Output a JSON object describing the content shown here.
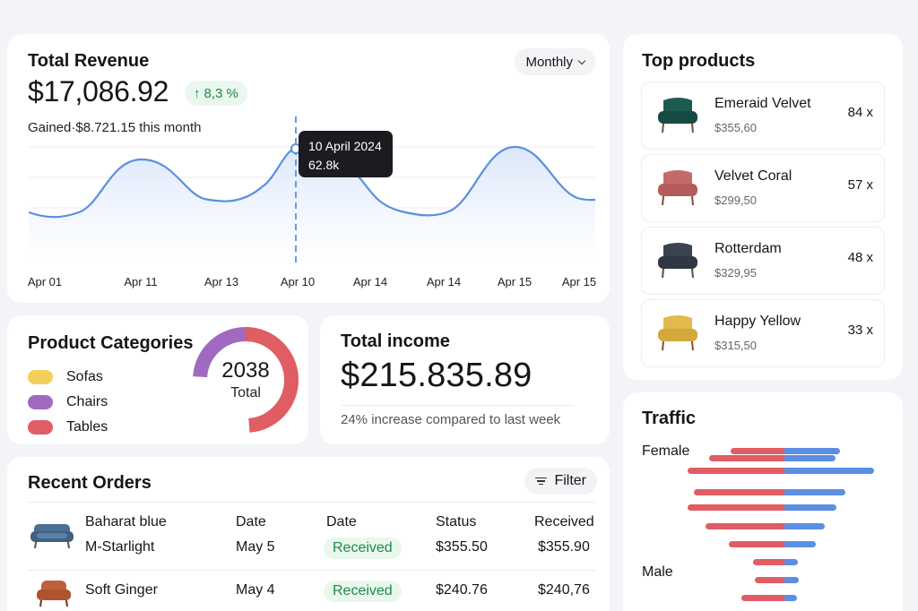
{
  "revenue": {
    "title": "Total Revenue",
    "period_selector": "Monthly",
    "total": "$17,086.92",
    "change": "8,3 %",
    "gained": "Gained·$8.721.15 this month",
    "tooltip": {
      "date": "10 April 2024",
      "value": "62.8k"
    },
    "x_labels": [
      "Apr 01",
      "Apr 11",
      "Apr 13",
      "Apr 10",
      "Apr 14",
      "Apr 14",
      "Apr 15",
      "Apr 15"
    ]
  },
  "categories": {
    "title": "Product Categories",
    "total": "2038",
    "total_label": "Total",
    "items": [
      {
        "label": "Sofas",
        "color": "#f5cf5b"
      },
      {
        "label": "Chairs",
        "color": "#a16ac1"
      },
      {
        "label": "Tables",
        "color": "#e05d63"
      }
    ]
  },
  "income": {
    "title": "Total income",
    "value": "$215.835.89",
    "subtitle": "24% increase compared to last week"
  },
  "orders": {
    "title": "Recent Orders",
    "filter_label": "Filter",
    "headers": {
      "date1": "Date",
      "date2": "Date",
      "status": "Status",
      "received": "Received"
    },
    "rows": [
      {
        "name": "Baharat blue",
        "variant": "M-Starlight",
        "date": "May 5",
        "status": "Received",
        "amount": "$355.50",
        "received": "$355.90",
        "thumb_icon": "sofa-icon",
        "color": "#4a6f92"
      },
      {
        "name": "Soft Ginger",
        "date": "May 4",
        "status": "Received",
        "amount": "$240.76",
        "received": "$240,76",
        "thumb_icon": "armchair-icon",
        "color": "#c0603a"
      }
    ]
  },
  "products": {
    "title": "Top products",
    "items": [
      {
        "name": "Emeraid Velvet",
        "price": "$355,60",
        "qty": "84 x",
        "color": "#1e5a50"
      },
      {
        "name": "Velvet Coral",
        "price": "$299,50",
        "qty": "57 x",
        "color": "#c56a6a"
      },
      {
        "name": "Rotterdam",
        "price": "$329,95",
        "qty": "48 x",
        "color": "#3a4350"
      },
      {
        "name": "Happy Yellow",
        "price": "$315,50",
        "qty": "33 x",
        "color": "#e3b94a"
      }
    ]
  },
  "traffic": {
    "title": "Traffic",
    "female_label": "Female",
    "male_label": "Male",
    "female_color": "#e05d63",
    "male_color": "#5b8fe6"
  }
}
